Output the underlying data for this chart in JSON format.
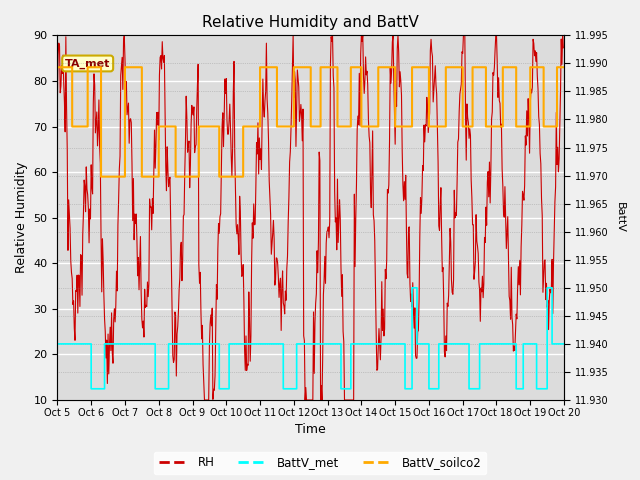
{
  "title": "Relative Humidity and BattV",
  "ylabel_left": "Relative Humidity",
  "ylabel_right": "BattV",
  "xlabel": "Time",
  "ylim_left": [
    10,
    90
  ],
  "ylim_right": [
    11.93,
    11.995
  ],
  "fig_facecolor": "#f0f0f0",
  "plot_bg_color": "#dcdcdc",
  "annotation_text": "TA_met",
  "annotation_bg": "#ffffcc",
  "annotation_border": "#ccaa00",
  "annotation_text_color": "#8b0000",
  "x_ticks": [
    "Oct 5",
    "Oct 6",
    "Oct 7",
    "Oct 8",
    "Oct 9",
    "Oct 10",
    "Oct 11",
    "Oct 12",
    "Oct 13",
    "Oct 14",
    "Oct 15",
    "Oct 16",
    "Oct 17",
    "Oct 18",
    "Oct 19",
    "Oct 20"
  ],
  "rh_color": "#cc0000",
  "batt_met_color": "#00ffff",
  "batt_soilco2_color": "#ffaa00",
  "legend_labels": [
    "RH",
    "BattV_met",
    "BattV_soilco2"
  ],
  "right_ticks": [
    11.93,
    11.935,
    11.94,
    11.945,
    11.95,
    11.955,
    11.96,
    11.965,
    11.97,
    11.975,
    11.98,
    11.985,
    11.99,
    11.995
  ],
  "left_yticks": [
    10,
    20,
    30,
    40,
    50,
    60,
    70,
    80,
    90
  ]
}
